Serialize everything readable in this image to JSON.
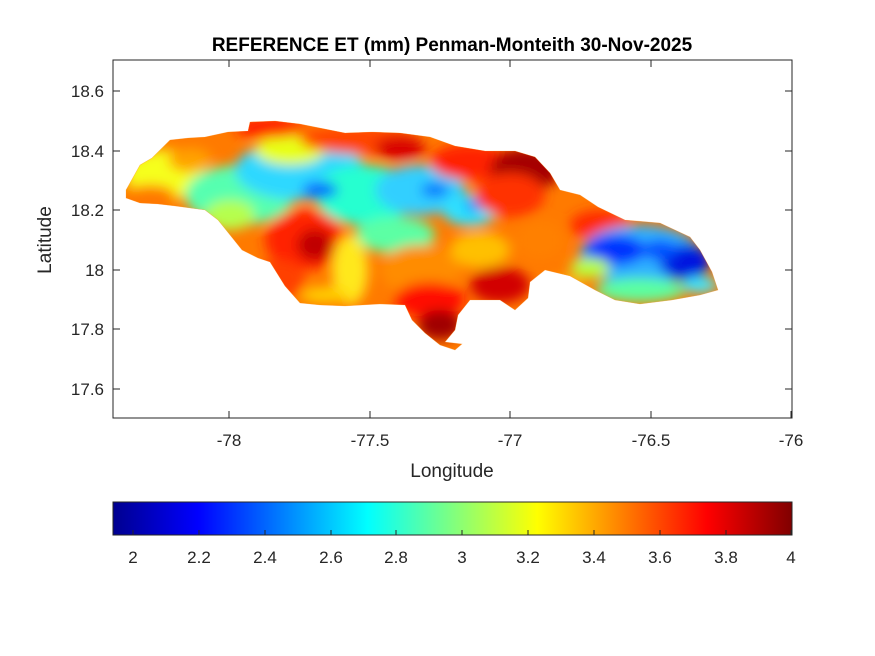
{
  "figure": {
    "title": "REFERENCE ET (mm) Penman-Monteith 30-Nov-2025",
    "xlabel": "Longitude",
    "ylabel": "Latitude"
  },
  "map": {
    "region": "Jamaica",
    "variable": "Reference evapotranspiration",
    "x_ticks": [
      "-78",
      "-77.5",
      "-77",
      "-76.5",
      "-76"
    ],
    "y_ticks": [
      "18.6",
      "18.4",
      "18.2",
      "18",
      "17.8",
      "17.6"
    ],
    "xlim": [
      -78.4,
      -76
    ],
    "ylim": [
      17.5,
      18.7
    ]
  },
  "colorbar": {
    "colormap": "jet",
    "ticks": [
      "2",
      "2.2",
      "2.4",
      "2.6",
      "2.8",
      "3",
      "3.2",
      "3.4",
      "3.6",
      "3.8",
      "4"
    ],
    "range": [
      1.94,
      4
    ]
  },
  "colors": {
    "jet_dark_blue": "#00008f",
    "jet_blue": "#0000ff",
    "jet_cyan": "#00ffff",
    "jet_yellow": "#ffff00",
    "jet_red": "#ff0000",
    "jet_dark_red": "#800000",
    "axis": "#262626"
  }
}
